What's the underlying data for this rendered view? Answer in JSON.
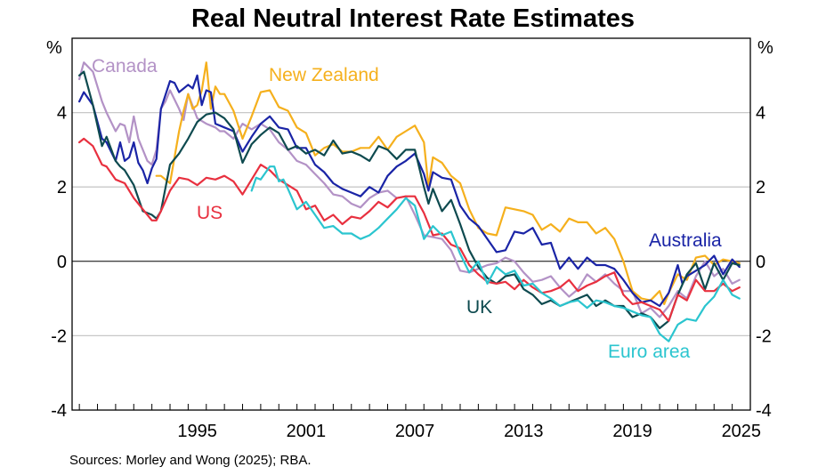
{
  "chart_data": {
    "type": "line",
    "title": "Real Neutral Interest Rate Estimates",
    "left_unit": "%",
    "right_unit": "%",
    "xlabel": "",
    "ylabel": "%",
    "xlim": [
      1988.6,
      2026.0
    ],
    "ylim": [
      -4,
      6
    ],
    "yticks": [
      -4,
      -2,
      0,
      2,
      4
    ],
    "ytick_labels": [
      "-4",
      "-2",
      "0",
      "2",
      "4"
    ],
    "xticks": [
      1995,
      2001,
      2007,
      2013,
      2019,
      2025
    ],
    "xtick_labels": [
      "1995",
      "2001",
      "2007",
      "2013",
      "2019",
      "2025"
    ],
    "grid": true,
    "legend": "inline-labels",
    "source": "Sources: Morley and Wong (2025); RBA.",
    "series": [
      {
        "name": "Canada",
        "label": "Canada",
        "color": "#b392c6",
        "x": [
          1989.0,
          1989.25,
          1989.75,
          1990.25,
          1990.5,
          1991.0,
          1991.25,
          1991.5,
          1991.75,
          1992.0,
          1992.25,
          1992.5,
          1992.75,
          1993.0,
          1993.25,
          1993.5,
          1993.75,
          1994.0,
          1994.5,
          1994.75,
          1995.0,
          1995.5,
          1996.0,
          1996.25,
          1996.5,
          1996.75,
          1997.0,
          1997.5,
          1998.0,
          1998.5,
          1999.0,
          1999.5,
          2000.0,
          2000.5,
          2001.0,
          2001.5,
          2002.0,
          2002.5,
          2003.0,
          2003.5,
          2004.0,
          2004.5,
          2005.0,
          2005.5,
          2006.0,
          2006.5,
          2007.0,
          2007.5,
          2008.0,
          2008.5,
          2009.0,
          2009.5,
          2010.0,
          2010.5,
          2011.0,
          2011.5,
          2012.0,
          2012.5,
          2013.0,
          2013.5,
          2014.0,
          2014.5,
          2015.0,
          2015.5,
          2016.0,
          2016.5,
          2017.0,
          2017.5,
          2018.0,
          2018.5,
          2019.0,
          2019.5,
          2020.0,
          2020.5,
          2021.0,
          2021.5,
          2022.0,
          2022.5,
          2023.0,
          2023.5,
          2024.0,
          2024.5,
          2025.0,
          2025.4
        ],
        "y": [
          4.9,
          5.35,
          5.1,
          4.3,
          4.0,
          3.5,
          3.7,
          3.65,
          3.2,
          3.9,
          3.3,
          3.0,
          2.7,
          2.6,
          3.0,
          4.1,
          4.3,
          4.6,
          4.1,
          3.8,
          4.5,
          3.85,
          3.7,
          3.65,
          3.6,
          3.5,
          3.5,
          3.3,
          3.7,
          3.55,
          3.7,
          3.55,
          3.2,
          3.0,
          2.7,
          2.6,
          2.35,
          2.1,
          1.8,
          1.75,
          1.55,
          1.45,
          1.7,
          1.85,
          1.9,
          1.7,
          1.75,
          1.25,
          0.7,
          0.65,
          0.6,
          0.3,
          -0.25,
          -0.3,
          -0.2,
          -0.1,
          -0.05,
          0.1,
          0.0,
          -0.3,
          -0.55,
          -0.5,
          -0.4,
          -0.7,
          -0.95,
          -0.75,
          -0.35,
          -0.55,
          -0.35,
          -0.6,
          -0.8,
          -0.8,
          -1.4,
          -1.25,
          -1.5,
          -1.2,
          -0.8,
          -1.0,
          -0.4,
          0.0,
          -0.4,
          -0.2,
          -0.6,
          -0.5
        ]
      },
      {
        "name": "New Zealand",
        "label": "New Zealand",
        "color": "#f5b01d",
        "x": [
          1993.25,
          1993.5,
          1994.0,
          1994.5,
          1994.75,
          1995.0,
          1995.25,
          1995.5,
          1995.75,
          1996.0,
          1996.25,
          1996.5,
          1996.75,
          1997.0,
          1997.5,
          1998.0,
          1998.5,
          1999.0,
          1999.5,
          2000.0,
          2000.5,
          2001.0,
          2001.5,
          2002.0,
          2002.5,
          2003.0,
          2003.5,
          2004.0,
          2004.5,
          2005.0,
          2005.5,
          2006.0,
          2006.5,
          2007.0,
          2007.5,
          2008.0,
          2008.25,
          2008.5,
          2009.0,
          2009.5,
          2010.0,
          2010.5,
          2011.0,
          2011.5,
          2012.0,
          2012.5,
          2013.0,
          2013.5,
          2014.0,
          2014.5,
          2015.0,
          2015.5,
          2016.0,
          2016.5,
          2017.0,
          2017.5,
          2018.0,
          2018.5,
          2019.0,
          2019.5,
          2020.0,
          2020.5,
          2021.0,
          2021.25,
          2021.5,
          2022.0,
          2022.5,
          2023.0,
          2023.5,
          2024.0,
          2024.5,
          2025.0,
          2025.4
        ],
        "y": [
          2.3,
          2.3,
          2.1,
          3.5,
          4.05,
          4.5,
          4.1,
          4.2,
          4.6,
          5.35,
          4.1,
          4.7,
          4.5,
          4.5,
          4.05,
          3.3,
          3.9,
          4.55,
          4.6,
          4.15,
          4.05,
          3.6,
          3.45,
          2.85,
          3.05,
          3.15,
          2.95,
          2.95,
          3.05,
          3.05,
          3.35,
          3.0,
          3.35,
          3.5,
          3.65,
          3.2,
          2.0,
          2.8,
          2.65,
          2.3,
          2.1,
          1.4,
          0.9,
          0.75,
          0.7,
          1.45,
          1.4,
          1.35,
          1.25,
          0.85,
          1.0,
          0.8,
          1.15,
          1.05,
          1.05,
          0.75,
          0.9,
          0.6,
          0.0,
          -0.8,
          -1.0,
          -1.05,
          -0.8,
          -1.15,
          -0.85,
          -0.35,
          -0.5,
          0.1,
          0.15,
          -0.1,
          0.05,
          0.0,
          -0.05
        ]
      },
      {
        "name": "Australia",
        "label": "Australia",
        "color": "#1a24a6",
        "x": [
          1989.0,
          1989.25,
          1989.75,
          1990.25,
          1990.5,
          1991.0,
          1991.25,
          1991.5,
          1991.75,
          1992.0,
          1992.25,
          1992.5,
          1992.75,
          1993.0,
          1993.25,
          1993.5,
          1994.0,
          1994.25,
          1994.5,
          1995.0,
          1995.25,
          1995.5,
          1995.75,
          1996.0,
          1996.25,
          1996.5,
          1996.75,
          1997.0,
          1997.5,
          1998.0,
          1998.5,
          1999.0,
          1999.5,
          2000.0,
          2000.5,
          2001.0,
          2001.5,
          2002.0,
          2002.5,
          2003.0,
          2003.5,
          2004.0,
          2004.5,
          2005.0,
          2005.5,
          2006.0,
          2006.5,
          2007.0,
          2007.5,
          2008.0,
          2008.25,
          2008.5,
          2009.0,
          2009.5,
          2010.0,
          2010.5,
          2011.0,
          2011.5,
          2012.0,
          2012.5,
          2013.0,
          2013.5,
          2014.0,
          2014.5,
          2015.0,
          2015.5,
          2016.0,
          2016.5,
          2017.0,
          2017.5,
          2018.0,
          2018.5,
          2019.0,
          2019.5,
          2020.0,
          2020.5,
          2021.0,
          2021.5,
          2022.0,
          2022.25,
          2022.5,
          2023.0,
          2023.5,
          2024.0,
          2024.5,
          2025.0,
          2025.4
        ],
        "y": [
          4.3,
          4.55,
          4.2,
          3.3,
          3.2,
          2.7,
          3.2,
          2.7,
          2.8,
          3.2,
          2.65,
          2.45,
          2.1,
          2.5,
          2.75,
          4.1,
          4.85,
          4.8,
          4.55,
          4.75,
          4.65,
          5.0,
          4.2,
          4.6,
          4.55,
          3.7,
          3.65,
          3.6,
          3.5,
          2.95,
          3.35,
          3.7,
          3.9,
          3.6,
          3.55,
          3.05,
          3.05,
          2.6,
          2.4,
          2.1,
          1.95,
          1.85,
          1.75,
          2.0,
          1.85,
          2.3,
          2.55,
          2.7,
          2.9,
          2.35,
          1.9,
          2.4,
          2.25,
          2.2,
          1.5,
          1.15,
          0.95,
          0.6,
          0.25,
          0.3,
          0.8,
          0.75,
          0.9,
          0.45,
          0.5,
          -0.2,
          0.1,
          -0.2,
          0.1,
          -0.1,
          -0.1,
          -0.2,
          -0.5,
          -0.85,
          -1.1,
          -1.05,
          -1.2,
          -0.85,
          -0.1,
          -0.6,
          -0.4,
          -0.25,
          -0.1,
          0.15,
          -0.35,
          0.05,
          -0.15
        ]
      },
      {
        "name": "UK",
        "label": "UK",
        "color": "#0e4a4f",
        "x": [
          1989.0,
          1989.25,
          1989.75,
          1990.25,
          1990.5,
          1991.0,
          1991.25,
          1991.5,
          1992.0,
          1992.5,
          1993.0,
          1993.25,
          1993.5,
          1994.0,
          1994.5,
          1995.0,
          1995.5,
          1996.0,
          1996.5,
          1997.0,
          1997.5,
          1998.0,
          1998.5,
          1999.0,
          1999.5,
          2000.0,
          2000.5,
          2001.0,
          2001.5,
          2002.0,
          2002.5,
          2003.0,
          2003.5,
          2004.0,
          2004.5,
          2005.0,
          2005.5,
          2006.0,
          2006.5,
          2007.0,
          2007.5,
          2008.0,
          2008.25,
          2008.5,
          2009.0,
          2009.5,
          2010.0,
          2010.5,
          2011.0,
          2011.5,
          2012.0,
          2012.5,
          2013.0,
          2013.5,
          2014.0,
          2014.5,
          2015.0,
          2015.5,
          2016.0,
          2016.5,
          2017.0,
          2017.5,
          2018.0,
          2018.5,
          2019.0,
          2019.5,
          2020.0,
          2020.5,
          2021.0,
          2021.5,
          2022.0,
          2022.5,
          2023.0,
          2023.5,
          2024.0,
          2024.5,
          2025.0,
          2025.4
        ],
        "y": [
          5.0,
          5.1,
          4.2,
          3.1,
          3.35,
          2.7,
          2.55,
          2.45,
          2.05,
          1.35,
          1.25,
          1.15,
          1.35,
          2.6,
          2.9,
          3.3,
          3.75,
          3.95,
          4.0,
          3.85,
          3.55,
          2.65,
          3.15,
          3.4,
          3.6,
          3.45,
          3.0,
          3.1,
          2.9,
          3.0,
          2.85,
          3.25,
          2.9,
          2.95,
          2.85,
          2.7,
          3.1,
          3.0,
          2.75,
          3.0,
          3.0,
          2.0,
          1.55,
          1.95,
          1.35,
          1.65,
          1.0,
          0.3,
          -0.15,
          -0.45,
          -0.6,
          -0.4,
          -0.35,
          -0.75,
          -0.9,
          -1.15,
          -1.05,
          -1.2,
          -1.1,
          -1.0,
          -0.9,
          -1.2,
          -1.05,
          -1.2,
          -1.2,
          -1.5,
          -1.4,
          -1.5,
          -1.8,
          -1.6,
          -0.9,
          -0.35,
          -0.05,
          -0.75,
          -0.05,
          -0.5,
          -0.05,
          -0.1
        ]
      },
      {
        "name": "US",
        "label": "US",
        "color": "#e8303f",
        "x": [
          1989.0,
          1989.25,
          1989.75,
          1990.25,
          1990.5,
          1991.0,
          1991.5,
          1992.0,
          1992.5,
          1993.0,
          1993.25,
          1993.5,
          1994.0,
          1994.5,
          1995.0,
          1995.5,
          1996.0,
          1996.5,
          1997.0,
          1997.5,
          1998.0,
          1998.5,
          1999.0,
          1999.5,
          2000.0,
          2000.5,
          2001.0,
          2001.5,
          2002.0,
          2002.5,
          2003.0,
          2003.5,
          2004.0,
          2004.5,
          2005.0,
          2005.5,
          2006.0,
          2006.5,
          2007.0,
          2007.5,
          2008.0,
          2008.5,
          2009.0,
          2009.5,
          2010.0,
          2010.5,
          2011.0,
          2011.5,
          2012.0,
          2012.5,
          2013.0,
          2013.5,
          2014.0,
          2014.5,
          2015.0,
          2015.5,
          2016.0,
          2016.5,
          2017.0,
          2017.5,
          2018.0,
          2018.5,
          2019.0,
          2019.5,
          2020.0,
          2020.5,
          2021.0,
          2021.5,
          2022.0,
          2022.5,
          2023.0,
          2023.5,
          2024.0,
          2024.5,
          2025.0,
          2025.4
        ],
        "y": [
          3.2,
          3.3,
          3.1,
          2.6,
          2.55,
          2.2,
          2.1,
          1.7,
          1.4,
          1.1,
          1.1,
          1.35,
          1.9,
          2.25,
          2.2,
          2.05,
          2.25,
          2.2,
          2.3,
          2.15,
          1.8,
          2.2,
          2.6,
          2.45,
          2.2,
          2.05,
          1.9,
          1.4,
          1.5,
          1.1,
          1.25,
          1.0,
          1.2,
          1.15,
          1.35,
          1.6,
          1.45,
          1.7,
          1.75,
          1.75,
          1.3,
          0.7,
          0.75,
          0.45,
          0.35,
          -0.1,
          -0.35,
          -0.55,
          -0.6,
          -0.55,
          -0.75,
          -0.5,
          -0.7,
          -0.85,
          -0.8,
          -0.7,
          -0.5,
          -0.8,
          -0.65,
          -0.55,
          -0.4,
          -0.3,
          -0.9,
          -1.15,
          -1.1,
          -1.2,
          -1.3,
          -1.6,
          -0.9,
          -1.05,
          -0.5,
          -0.8,
          -0.8,
          -0.6,
          -0.8,
          -0.7
        ]
      },
      {
        "name": "Euro area",
        "label": "Euro area",
        "color": "#2bc5cf",
        "x": [
          1998.5,
          1998.75,
          1999.0,
          1999.5,
          1999.75,
          2000.0,
          2000.25,
          2000.5,
          2001.0,
          2001.5,
          2002.0,
          2002.5,
          2003.0,
          2003.5,
          2004.0,
          2004.5,
          2005.0,
          2005.5,
          2006.0,
          2006.5,
          2007.0,
          2007.5,
          2008.0,
          2008.5,
          2009.0,
          2009.5,
          2010.0,
          2010.5,
          2011.0,
          2011.5,
          2012.0,
          2012.5,
          2013.0,
          2013.5,
          2014.0,
          2014.5,
          2015.0,
          2015.5,
          2016.0,
          2016.5,
          2017.0,
          2017.5,
          2018.0,
          2018.5,
          2019.0,
          2019.5,
          2020.0,
          2020.5,
          2021.0,
          2021.5,
          2022.0,
          2022.5,
          2023.0,
          2023.5,
          2024.0,
          2024.5,
          2025.0,
          2025.4
        ],
        "y": [
          1.9,
          2.25,
          2.2,
          2.55,
          2.55,
          2.15,
          2.2,
          1.95,
          1.4,
          1.6,
          1.25,
          0.9,
          0.95,
          0.75,
          0.75,
          0.6,
          0.7,
          0.9,
          1.15,
          1.4,
          1.7,
          1.5,
          0.6,
          0.95,
          0.7,
          0.8,
          0.2,
          -0.3,
          0.0,
          -0.6,
          -0.15,
          -0.35,
          -0.25,
          -0.65,
          -0.6,
          -0.85,
          -1.0,
          -1.2,
          -1.1,
          -1.05,
          -1.25,
          -1.05,
          -1.1,
          -1.2,
          -1.25,
          -1.35,
          -1.45,
          -1.5,
          -1.95,
          -2.15,
          -1.7,
          -1.55,
          -1.6,
          -1.2,
          -0.95,
          -0.5,
          -0.9,
          -1.0
        ]
      }
    ]
  }
}
